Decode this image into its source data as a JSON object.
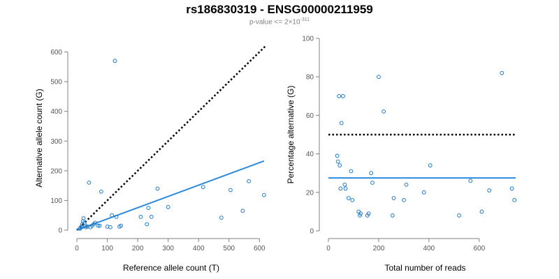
{
  "figure": {
    "title": "rs186830319 - ENSG00000211959",
    "subtitle_prefix": "p-value <= 2×10",
    "subtitle_exponent": "-311"
  },
  "colors": {
    "points": "#1f78c8",
    "fit_line": "#2b8ae0",
    "reference_line": "#000000",
    "axis": "#808080",
    "text": "#000000"
  },
  "chart_data": [
    {
      "type": "scatter",
      "xlabel": "Reference allele count (T)",
      "ylabel": "Alternative allele count (G)",
      "xlim": [
        0,
        620
      ],
      "ylim": [
        0,
        620
      ],
      "xticks": [
        0,
        100,
        200,
        300,
        400,
        500,
        600
      ],
      "yticks": [
        0,
        100,
        200,
        300,
        400,
        500,
        600
      ],
      "grid": false,
      "points": [
        [
          10,
          5
        ],
        [
          12,
          8
        ],
        [
          15,
          12
        ],
        [
          18,
          20
        ],
        [
          20,
          30
        ],
        [
          22,
          40
        ],
        [
          25,
          25
        ],
        [
          28,
          15
        ],
        [
          30,
          10
        ],
        [
          35,
          12
        ],
        [
          40,
          160
        ],
        [
          45,
          10
        ],
        [
          50,
          15
        ],
        [
          55,
          20
        ],
        [
          60,
          25
        ],
        [
          70,
          15
        ],
        [
          75,
          15
        ],
        [
          80,
          130
        ],
        [
          100,
          12
        ],
        [
          110,
          10
        ],
        [
          115,
          50
        ],
        [
          125,
          570
        ],
        [
          130,
          45
        ],
        [
          140,
          12
        ],
        [
          145,
          15
        ],
        [
          210,
          45
        ],
        [
          230,
          20
        ],
        [
          235,
          75
        ],
        [
          245,
          45
        ],
        [
          265,
          140
        ],
        [
          300,
          78
        ],
        [
          415,
          145
        ],
        [
          475,
          42
        ],
        [
          505,
          135
        ],
        [
          545,
          65
        ],
        [
          565,
          165
        ],
        [
          615,
          118
        ]
      ],
      "reference_line": {
        "style": "dotted",
        "x": [
          0,
          620
        ],
        "y": [
          0,
          620
        ]
      },
      "fit_line": {
        "style": "solid",
        "x": [
          0,
          615
        ],
        "y": [
          0,
          233
        ]
      }
    },
    {
      "type": "scatter",
      "xlabel": "Total number of reads",
      "ylabel": "Percentage alternative (G)",
      "xlim": [
        0,
        770
      ],
      "ylim": [
        0,
        100
      ],
      "xticks": [
        0,
        200,
        400,
        600
      ],
      "yticks": [
        0,
        20,
        40,
        60,
        80,
        100
      ],
      "grid": false,
      "points": [
        [
          35,
          39
        ],
        [
          38,
          36
        ],
        [
          42,
          70
        ],
        [
          45,
          34
        ],
        [
          48,
          22
        ],
        [
          52,
          56
        ],
        [
          58,
          70
        ],
        [
          65,
          24
        ],
        [
          68,
          22
        ],
        [
          80,
          17
        ],
        [
          90,
          31
        ],
        [
          95,
          16
        ],
        [
          120,
          10
        ],
        [
          125,
          8
        ],
        [
          128,
          9
        ],
        [
          155,
          8
        ],
        [
          160,
          9
        ],
        [
          170,
          30
        ],
        [
          175,
          25
        ],
        [
          200,
          80
        ],
        [
          220,
          62
        ],
        [
          255,
          8
        ],
        [
          260,
          17
        ],
        [
          300,
          16
        ],
        [
          310,
          24
        ],
        [
          380,
          20
        ],
        [
          405,
          34
        ],
        [
          520,
          8
        ],
        [
          565,
          26
        ],
        [
          610,
          10
        ],
        [
          640,
          21
        ],
        [
          690,
          82
        ],
        [
          730,
          22
        ],
        [
          740,
          16
        ]
      ],
      "reference_line": {
        "style": "dotted",
        "x": [
          0,
          745
        ],
        "y": [
          50,
          50
        ]
      },
      "fit_line": {
        "style": "solid",
        "x": [
          0,
          745
        ],
        "y": [
          27.5,
          27.5
        ]
      }
    }
  ]
}
